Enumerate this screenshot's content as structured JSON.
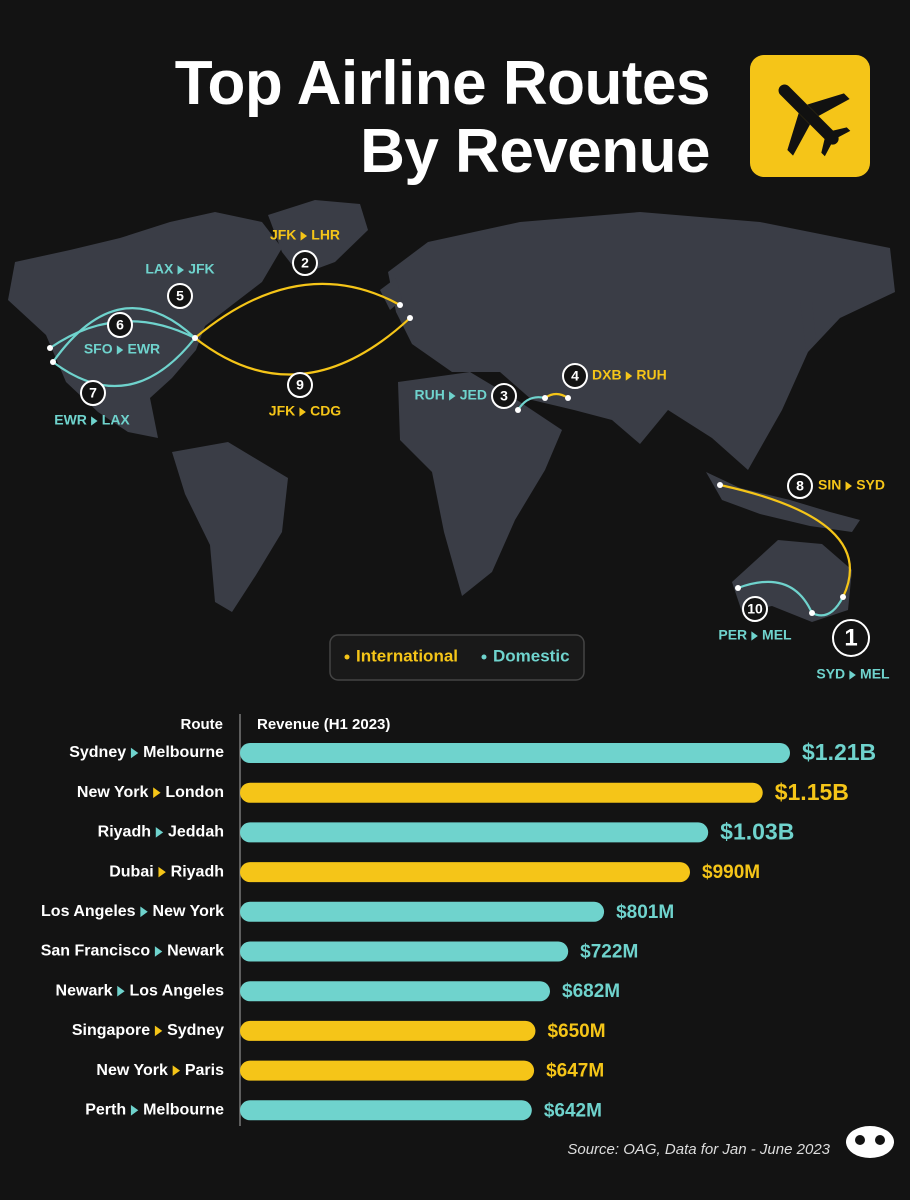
{
  "title": "Top Airline Routes By Revenue",
  "map": {
    "routes": [
      {
        "rank": 1,
        "from": "SYD",
        "to": "MEL",
        "color": "#6fd3cd"
      },
      {
        "rank": 2,
        "from": "JFK",
        "to": "LHR",
        "color": "#f5c518"
      },
      {
        "rank": 3,
        "from": "RUH",
        "to": "JED",
        "color": "#6fd3cd"
      },
      {
        "rank": 4,
        "from": "DXB",
        "to": "RUH",
        "color": "#f5c518"
      },
      {
        "rank": 5,
        "from": "LAX",
        "to": "JFK",
        "color": "#6fd3cd"
      },
      {
        "rank": 6,
        "from": "SFO",
        "to": "EWR",
        "color": "#6fd3cd"
      },
      {
        "rank": 7,
        "from": "EWR",
        "to": "LAX",
        "color": "#6fd3cd"
      },
      {
        "rank": 8,
        "from": "SIN",
        "to": "SYD",
        "color": "#f5c518"
      },
      {
        "rank": 9,
        "from": "JFK",
        "to": "CDG",
        "color": "#f5c518"
      },
      {
        "rank": 10,
        "from": "PER",
        "to": "MEL",
        "color": "#6fd3cd"
      }
    ]
  },
  "chart_data": {
    "type": "bar",
    "orientation": "horizontal",
    "category_header": "Route",
    "value_header": "Revenue (H1 2023)",
    "categories": [
      "Sydney",
      "New York",
      "Riyadh",
      "Dubai",
      "Los Angeles",
      "San Francisco",
      "Newark",
      "Singapore",
      "New York",
      "Perth"
    ],
    "destinations": [
      "Melbourne",
      "London",
      "Jeddah",
      "Riyadh",
      "New York",
      "Newark",
      "Los Angeles",
      "Sydney",
      "Paris",
      "Melbourne"
    ],
    "series": [
      {
        "name": "International",
        "color": "#f5c518",
        "values": [
          null,
          1150000000,
          null,
          990000000,
          null,
          null,
          null,
          650000000,
          647000000,
          null
        ],
        "value_labels": [
          null,
          "$1.15B",
          null,
          "$990M",
          null,
          null,
          null,
          "$650M",
          "$647M",
          null
        ]
      },
      {
        "name": "Domestic",
        "color": "#6fd3cd",
        "values": [
          1210000000,
          null,
          1030000000,
          null,
          801000000,
          722000000,
          682000000,
          null,
          null,
          642000000
        ],
        "value_labels": [
          "$1.21B",
          null,
          "$1.03B",
          null,
          "$801M",
          "$722M",
          "$682M",
          null,
          null,
          "$642M"
        ]
      }
    ],
    "source": "Source: OAG, Data for Jan - June 2023"
  }
}
